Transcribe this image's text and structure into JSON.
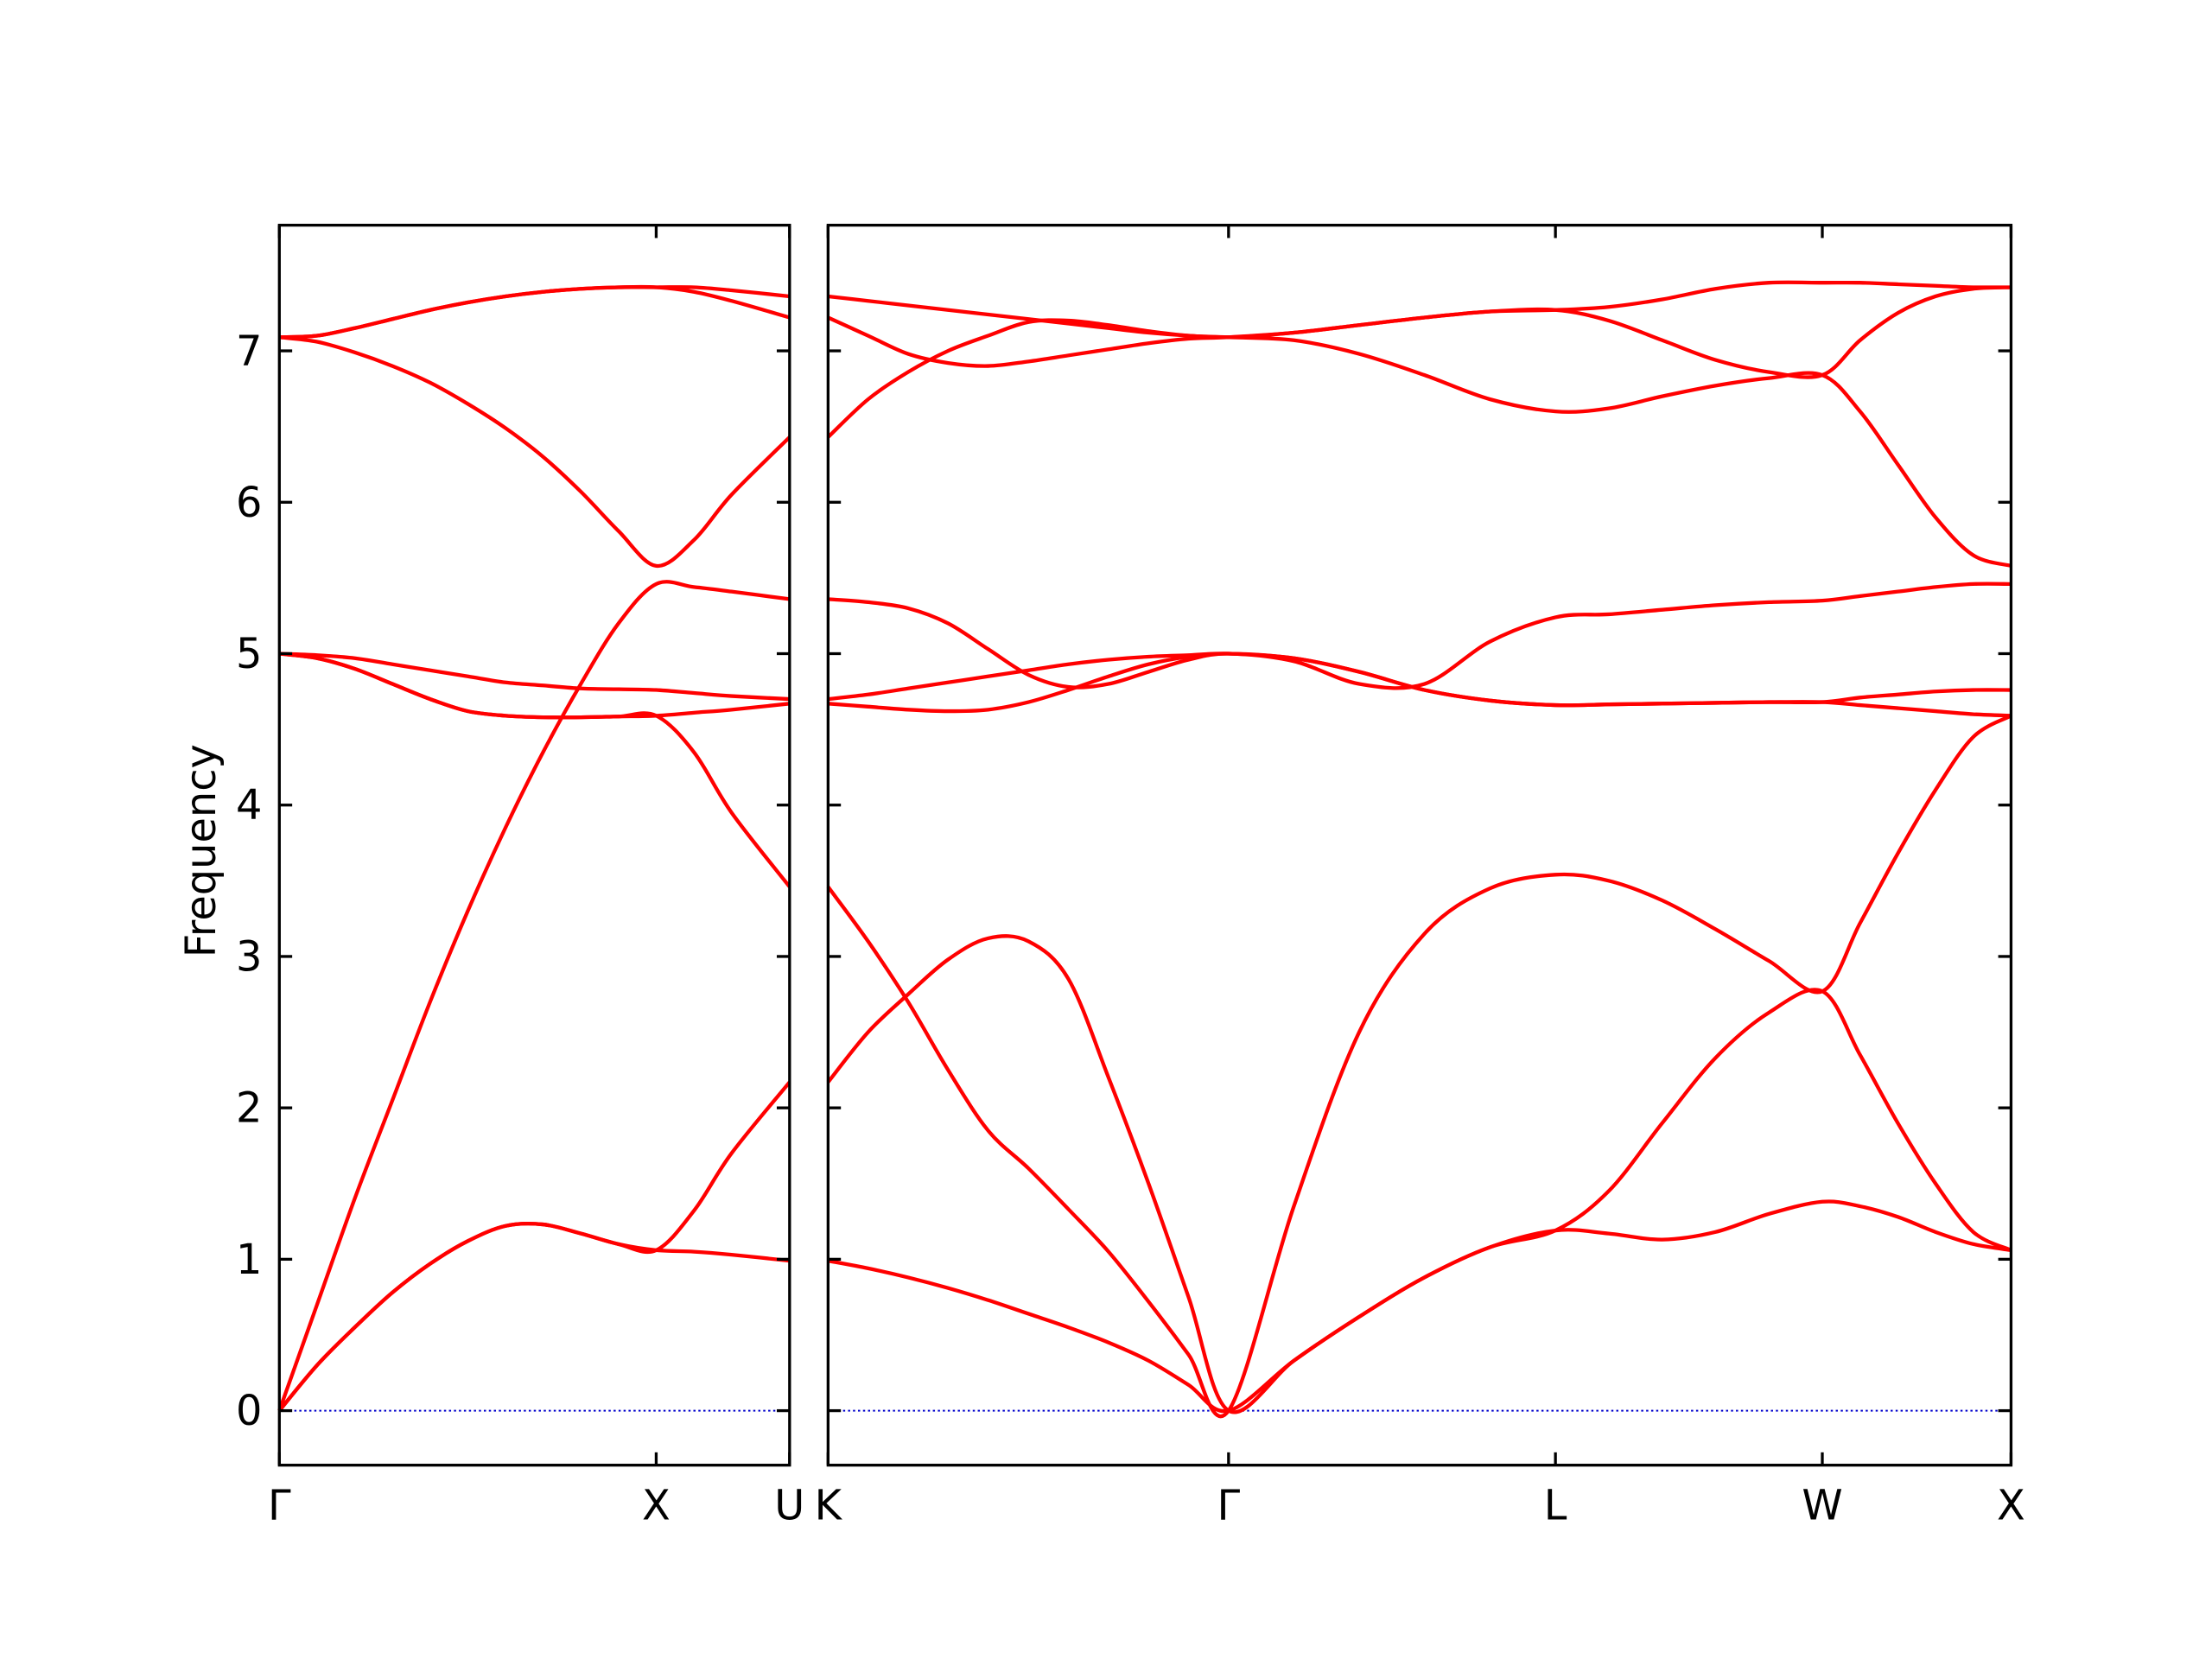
{
  "chart_data": [
    {
      "type": "line",
      "ylabel": "Frequency",
      "x": [
        0,
        0.1,
        0.2,
        0.3,
        0.4,
        0.5,
        0.6,
        0.7,
        0.8,
        0.9,
        1.0,
        1.1,
        1.2,
        1.354
      ],
      "xlim": [
        0,
        1.354
      ],
      "xticks": [
        {
          "value": 0,
          "label": "Γ"
        },
        {
          "value": 1,
          "label": "X"
        },
        {
          "value": 1.354,
          "label": "U"
        }
      ],
      "ylim": [
        -0.36,
        7.83
      ],
      "yticks": [
        0,
        1,
        2,
        3,
        4,
        5,
        6,
        7
      ],
      "zero_line": {
        "value": 0,
        "color": "#0000cc"
      },
      "series": [
        {
          "color": "#ff0000",
          "values": [
            0,
            0.3,
            0.55,
            0.78,
            0.97,
            1.12,
            1.22,
            1.23,
            1.17,
            1.1,
            1.06,
            1.05,
            1.03,
            0.99
          ]
        },
        {
          "color": "#ff0000",
          "values": [
            0,
            0.3,
            0.55,
            0.78,
            0.97,
            1.12,
            1.22,
            1.23,
            1.17,
            1.1,
            1.06,
            1.32,
            1.7,
            2.17
          ]
        },
        {
          "color": "#ff0000",
          "values": [
            0,
            0.7,
            1.4,
            2.05,
            2.7,
            3.3,
            3.85,
            4.35,
            4.8,
            5.2,
            5.46,
            5.44,
            5.41,
            5.36
          ]
        },
        {
          "color": "#ff0000",
          "values": [
            5.0,
            4.97,
            4.9,
            4.8,
            4.7,
            4.62,
            4.59,
            4.58,
            4.58,
            4.585,
            4.59,
            4.35,
            3.95,
            3.46
          ]
        },
        {
          "color": "#ff0000",
          "values": [
            5.0,
            4.97,
            4.9,
            4.8,
            4.7,
            4.62,
            4.59,
            4.58,
            4.58,
            4.585,
            4.59,
            4.61,
            4.63,
            4.67
          ]
        },
        {
          "color": "#ff0000",
          "values": [
            5.0,
            4.99,
            4.97,
            4.93,
            4.89,
            4.85,
            4.81,
            4.79,
            4.77,
            4.765,
            4.76,
            4.74,
            4.72,
            4.7
          ]
        },
        {
          "color": "#ff0000",
          "values": [
            7.09,
            7.06,
            6.99,
            6.9,
            6.79,
            6.65,
            6.49,
            6.3,
            6.07,
            5.81,
            5.58,
            5.75,
            6.05,
            6.43
          ]
        },
        {
          "color": "#ff0000",
          "values": [
            7.09,
            7.1,
            7.15,
            7.21,
            7.27,
            7.32,
            7.36,
            7.39,
            7.41,
            7.42,
            7.42,
            7.39,
            7.33,
            7.22
          ]
        },
        {
          "color": "#ff0000",
          "values": [
            7.09,
            7.1,
            7.15,
            7.21,
            7.27,
            7.32,
            7.36,
            7.39,
            7.41,
            7.42,
            7.42,
            7.42,
            7.4,
            7.36
          ]
        }
      ]
    },
    {
      "type": "line",
      "x": [
        1.354,
        1.46,
        1.566,
        1.672,
        1.778,
        1.885,
        1.991,
        2.097,
        2.203,
        2.309,
        2.415,
        2.588,
        2.761,
        2.934,
        3.108,
        3.281,
        3.422,
        3.564,
        3.705,
        3.847,
        3.988,
        4.088,
        4.188,
        4.288,
        4.388,
        4.488
      ],
      "xlim": [
        1.354,
        4.488
      ],
      "xticks": [
        {
          "value": 1.354,
          "label": "K"
        },
        {
          "value": 2.415,
          "label": "Γ"
        },
        {
          "value": 3.281,
          "label": "L"
        },
        {
          "value": 3.988,
          "label": "W"
        },
        {
          "value": 4.488,
          "label": "X"
        }
      ],
      "zero_line": {
        "value": 0,
        "color": "#0000cc"
      },
      "series": [
        {
          "color": "#ff0000",
          "values": [
            0.99,
            0.94,
            0.88,
            0.81,
            0.73,
            0.64,
            0.55,
            0.45,
            0.33,
            0.17,
            0,
            0.33,
            0.62,
            0.88,
            1.08,
            1.19,
            1.17,
            1.13,
            1.18,
            1.3,
            1.38,
            1.35,
            1.28,
            1.18,
            1.1,
            1.06
          ]
        },
        {
          "color": "#ff0000",
          "values": [
            2.17,
            2.5,
            2.75,
            2.98,
            3.12,
            3.1,
            2.85,
            2.2,
            1.5,
            0.75,
            0,
            0.33,
            0.62,
            0.88,
            1.08,
            1.19,
            1.45,
            1.9,
            2.33,
            2.63,
            2.77,
            2.35,
            1.9,
            1.5,
            1.18,
            1.06
          ]
        },
        {
          "color": "#ff0000",
          "values": [
            3.46,
            3.1,
            2.7,
            2.25,
            1.85,
            1.6,
            1.33,
            1.05,
            0.72,
            0.37,
            0,
            1.35,
            2.5,
            3.15,
            3.45,
            3.54,
            3.5,
            3.37,
            3.18,
            2.97,
            2.77,
            3.22,
            3.68,
            4.1,
            4.45,
            4.59
          ]
        },
        {
          "color": "#ff0000",
          "values": [
            4.67,
            4.65,
            4.63,
            4.62,
            4.63,
            4.68,
            4.76,
            4.85,
            4.93,
            4.98,
            5.0,
            4.97,
            4.88,
            4.76,
            4.69,
            4.66,
            4.665,
            4.67,
            4.675,
            4.68,
            4.68,
            4.66,
            4.64,
            4.62,
            4.6,
            4.59
          ]
        },
        {
          "color": "#ff0000",
          "values": [
            4.7,
            4.73,
            4.77,
            4.81,
            4.85,
            4.89,
            4.93,
            4.96,
            4.98,
            4.99,
            5.0,
            4.97,
            4.88,
            4.76,
            4.69,
            4.66,
            4.665,
            4.67,
            4.675,
            4.68,
            4.68,
            4.71,
            4.73,
            4.75,
            4.76,
            4.76
          ]
        },
        {
          "color": "#ff0000",
          "values": [
            5.36,
            5.34,
            5.3,
            5.2,
            5.03,
            4.86,
            4.78,
            4.8,
            4.88,
            4.96,
            5.0,
            4.95,
            4.8,
            4.8,
            5.08,
            5.24,
            5.26,
            5.29,
            5.32,
            5.34,
            5.35,
            5.38,
            5.41,
            5.44,
            5.46,
            5.46
          ]
        },
        {
          "color": "#ff0000",
          "values": [
            6.43,
            6.68,
            6.86,
            7.0,
            7.1,
            7.19,
            7.2,
            7.17,
            7.13,
            7.1,
            7.09,
            7.07,
            6.98,
            6.84,
            6.68,
            6.6,
            6.62,
            6.7,
            6.77,
            6.82,
            6.84,
            6.6,
            6.25,
            5.9,
            5.65,
            5.58
          ]
        },
        {
          "color": "#ff0000",
          "values": [
            7.22,
            7.1,
            6.98,
            6.92,
            6.9,
            6.93,
            6.97,
            7.01,
            7.05,
            7.08,
            7.09,
            7.12,
            7.17,
            7.22,
            7.26,
            7.27,
            7.2,
            7.07,
            6.94,
            6.86,
            6.84,
            7.07,
            7.25,
            7.36,
            7.41,
            7.42
          ]
        },
        {
          "color": "#ff0000",
          "values": [
            7.36,
            7.33,
            7.3,
            7.27,
            7.24,
            7.21,
            7.18,
            7.15,
            7.12,
            7.1,
            7.09,
            7.12,
            7.17,
            7.22,
            7.26,
            7.27,
            7.29,
            7.34,
            7.41,
            7.45,
            7.45,
            7.45,
            7.44,
            7.43,
            7.42,
            7.42
          ]
        }
      ]
    }
  ]
}
